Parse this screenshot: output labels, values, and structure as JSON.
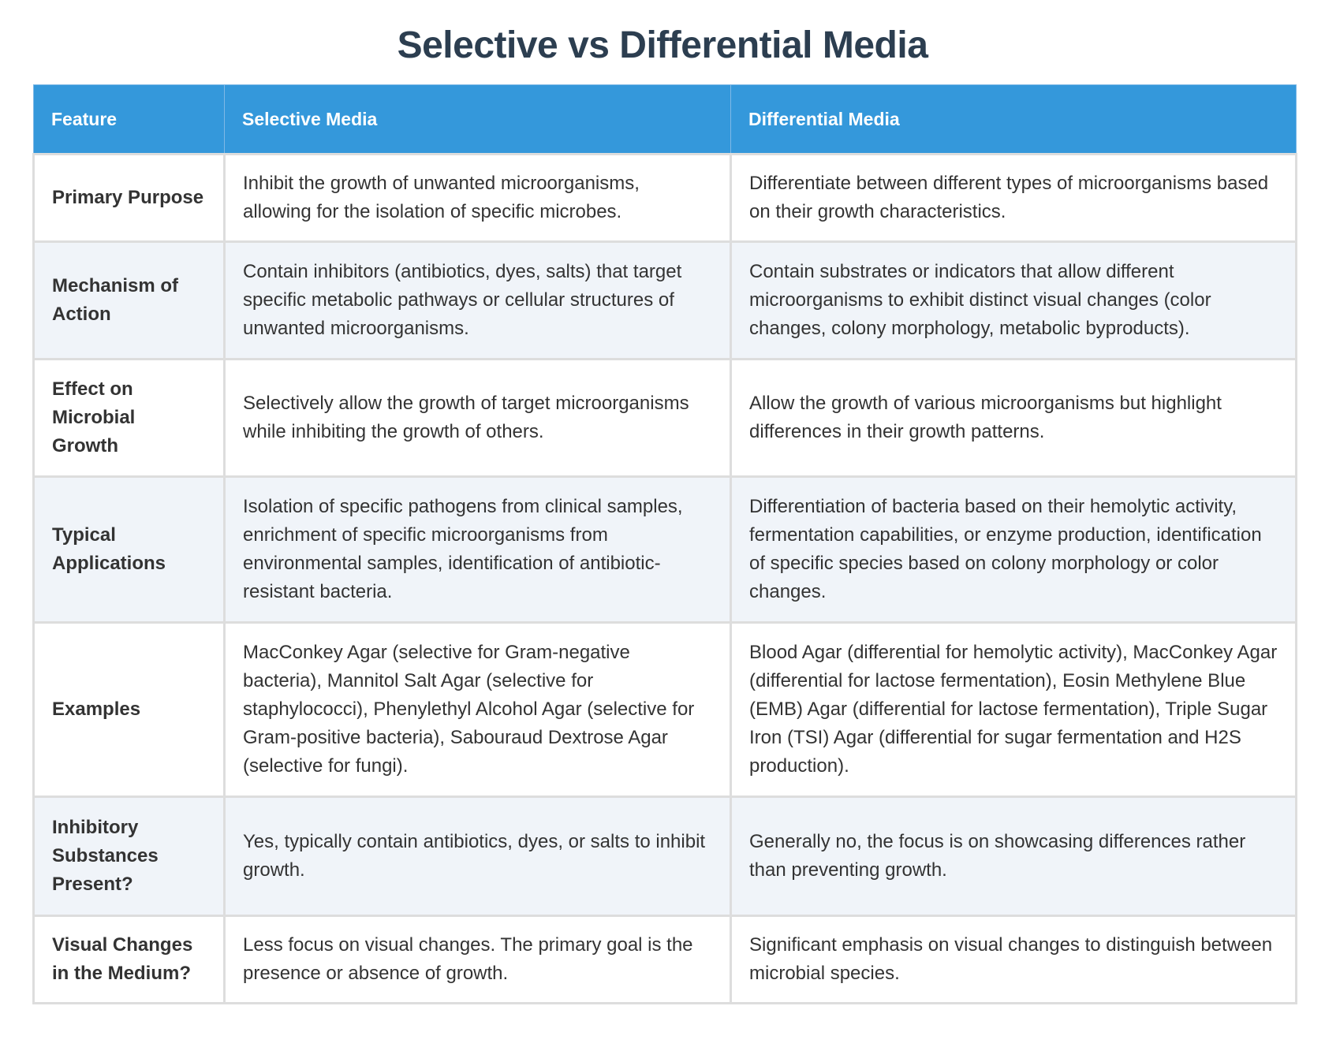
{
  "page": {
    "title": "Selective vs Differential Media"
  },
  "colors": {
    "title": "#2c3e50",
    "header_bg": "#3498db",
    "header_text": "#ffffff",
    "row_alt_bg": "#f0f4f9",
    "border": "#dddddd",
    "body_text": "#333333"
  },
  "table": {
    "headers": [
      "Feature",
      "Selective Media",
      "Differential Media"
    ],
    "rows": [
      {
        "feature": "Primary Purpose",
        "selective": "Inhibit the growth of unwanted microorganisms, allowing for the isolation of specific microbes.",
        "differential": "Differentiate between different types of microorganisms based on their growth characteristics."
      },
      {
        "feature": "Mechanism of Action",
        "selective": "Contain inhibitors (antibiotics, dyes, salts) that target specific metabolic pathways or cellular structures of unwanted microorganisms.",
        "differential": "Contain substrates or indicators that allow different microorganisms to exhibit distinct visual changes (color changes, colony morphology, metabolic byproducts)."
      },
      {
        "feature": "Effect on Microbial Growth",
        "selective": "Selectively allow the growth of target microorganisms while inhibiting the growth of others.",
        "differential": "Allow the growth of various microorganisms but highlight differences in their growth patterns."
      },
      {
        "feature": "Typical Applications",
        "selective": "Isolation of specific pathogens from clinical samples, enrichment of specific microorganisms from environmental samples, identification of antibiotic-resistant bacteria.",
        "differential": "Differentiation of bacteria based on their hemolytic activity, fermentation capabilities, or enzyme production, identification of specific species based on colony morphology or color changes."
      },
      {
        "feature": "Examples",
        "selective": "MacConkey Agar (selective for Gram-negative bacteria), Mannitol Salt Agar (selective for staphylococci), Phenylethyl Alcohol Agar (selective for Gram-positive bacteria), Sabouraud Dextrose Agar (selective for fungi).",
        "differential": "Blood Agar (differential for hemolytic activity), MacConkey Agar (differential for lactose fermentation), Eosin Methylene Blue (EMB) Agar (differential for lactose fermentation), Triple Sugar Iron (TSI) Agar (differential for sugar fermentation and H2S production)."
      },
      {
        "feature": "Inhibitory Substances Present?",
        "selective": "Yes, typically contain antibiotics, dyes, or salts to inhibit growth.",
        "differential": "Generally no, the focus is on showcasing differences rather than preventing growth."
      },
      {
        "feature": "Visual Changes in the Medium?",
        "selective": "Less focus on visual changes. The primary goal is the presence or absence of growth.",
        "differential": "Significant emphasis on visual changes to distinguish between microbial species."
      }
    ]
  }
}
